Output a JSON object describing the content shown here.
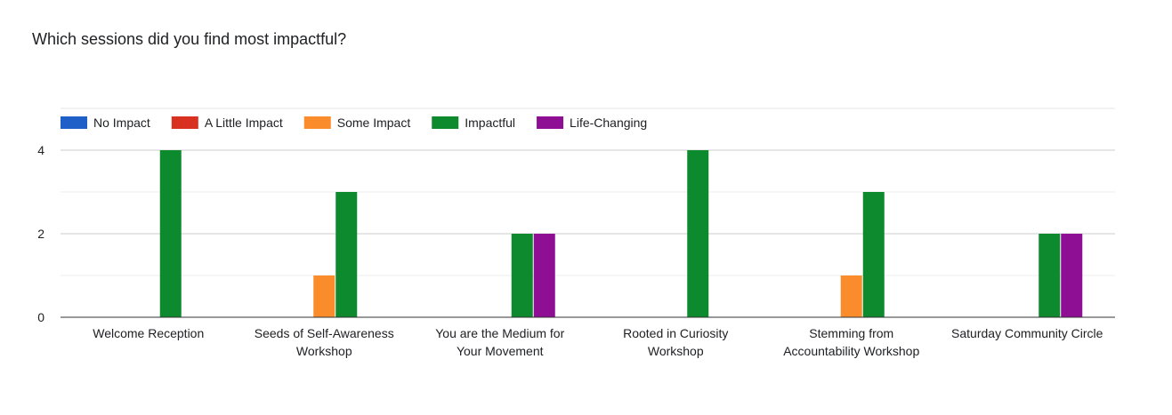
{
  "question": {
    "title": "Which sessions did you find most impactful?"
  },
  "chart_data": {
    "type": "bar",
    "title": "Which sessions did you find most impactful?",
    "xlabel": "",
    "ylabel": "",
    "categories": [
      [
        "Welcome Reception"
      ],
      [
        "Seeds of Self-Awareness",
        "Workshop"
      ],
      [
        "You are the Medium for",
        "Your Movement"
      ],
      [
        "Rooted in Curiosity",
        "Workshop"
      ],
      [
        "Stemming from",
        "Accountability Workshop"
      ],
      [
        "Saturday Community Circle"
      ]
    ],
    "series": [
      {
        "name": "No Impact",
        "color": "#1f5fc8",
        "values": [
          0,
          0,
          0,
          0,
          0,
          0
        ]
      },
      {
        "name": "A Little Impact",
        "color": "#d9311f",
        "values": [
          0,
          0,
          0,
          0,
          0,
          0
        ]
      },
      {
        "name": "Some Impact",
        "color": "#fb8c2b",
        "values": [
          0,
          1,
          0,
          0,
          1,
          0
        ]
      },
      {
        "name": "Impactful",
        "color": "#0e8a2e",
        "values": [
          4,
          3,
          2,
          4,
          3,
          2
        ]
      },
      {
        "name": "Life-Changing",
        "color": "#8e0f93",
        "values": [
          0,
          0,
          2,
          0,
          0,
          2
        ]
      }
    ],
    "ylim": [
      0,
      4
    ],
    "yticks": [
      0,
      2,
      4
    ],
    "grid": true,
    "legend": "top-left"
  }
}
